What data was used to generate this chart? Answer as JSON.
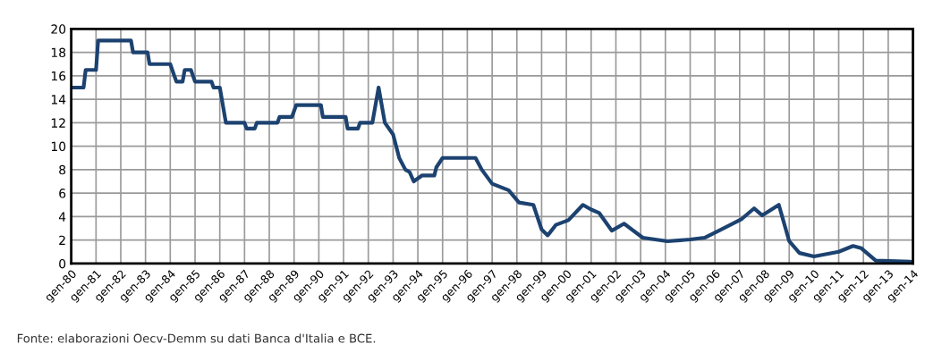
{
  "chart_data": {
    "type": "step",
    "x": [
      "1980-01",
      "1980-07",
      "1980-08",
      "1981-01",
      "1981-02",
      "1982-06",
      "1982-07",
      "1983-02",
      "1983-03",
      "1984-01",
      "1984-03",
      "1984-04",
      "1984-07",
      "1984-08",
      "1984-11",
      "1985-01",
      "1985-09",
      "1985-10",
      "1986-01",
      "1986-04",
      "1987-01",
      "1987-02",
      "1987-06",
      "1987-07",
      "1988-05",
      "1988-06",
      "1988-12",
      "1989-02",
      "1990-02",
      "1990-03",
      "1991-02",
      "1991-03",
      "1991-08",
      "1991-09",
      "1992-03",
      "1992-06",
      "1992-09",
      "1993-01",
      "1993-04",
      "1993-07",
      "1993-09",
      "1993-11",
      "1994-03",
      "1994-09",
      "1994-10",
      "1995-01",
      "1996-05",
      "1996-08",
      "1997-01",
      "1997-09",
      "1998-02",
      "1998-09",
      "1999-01",
      "1999-04",
      "1999-08",
      "2000-02",
      "2000-09",
      "2001-01",
      "2001-05",
      "2001-11",
      "2002-05",
      "2003-02",
      "2004-02",
      "2005-01",
      "2005-08",
      "2006-03",
      "2007-02",
      "2007-08",
      "2007-12",
      "2008-08",
      "2009-01",
      "2009-06",
      "2010-01",
      "2011-01",
      "2011-08",
      "2011-12",
      "2012-07",
      "2014-01"
    ],
    "series": [
      {
        "color": "#1c4270",
        "values": [
          15,
          15,
          16.5,
          16.5,
          19,
          19,
          18,
          18,
          17,
          17,
          16,
          15.5,
          15.5,
          16.5,
          16.5,
          15.5,
          15.5,
          15,
          15,
          12,
          12,
          11.5,
          11.5,
          12,
          12,
          12.5,
          12.5,
          13.5,
          13.5,
          12.5,
          12.5,
          11.5,
          11.5,
          12,
          12,
          15,
          12,
          11,
          9,
          8,
          7.8,
          7,
          7.5,
          7.5,
          8.2,
          9,
          9,
          8,
          6.8,
          6.25,
          5.2,
          5,
          2.9,
          2.4,
          3.3,
          3.7,
          5,
          4.6,
          4.3,
          2.8,
          3.4,
          2.2,
          1.9,
          2.05,
          2.2,
          2.8,
          3.8,
          4.7,
          4.1,
          5,
          1.9,
          0.9,
          0.6,
          1,
          1.5,
          1.3,
          0.25,
          0.15
        ]
      }
    ],
    "xlim": [
      "1980-01",
      "2014-01"
    ],
    "xticks": [
      {
        "value": "1980-01",
        "label": "gen-80"
      },
      {
        "value": "1981-01",
        "label": "gen-81"
      },
      {
        "value": "1982-01",
        "label": "gen-82"
      },
      {
        "value": "1983-01",
        "label": "gen-83"
      },
      {
        "value": "1984-01",
        "label": "gen-84"
      },
      {
        "value": "1985-01",
        "label": "gen-85"
      },
      {
        "value": "1986-01",
        "label": "gen-86"
      },
      {
        "value": "1987-01",
        "label": "gen-87"
      },
      {
        "value": "1988-01",
        "label": "gen-88"
      },
      {
        "value": "1989-01",
        "label": "gen-89"
      },
      {
        "value": "1990-01",
        "label": "gen-90"
      },
      {
        "value": "1991-01",
        "label": "gen-91"
      },
      {
        "value": "1992-01",
        "label": "gen-92"
      },
      {
        "value": "1993-01",
        "label": "gen-93"
      },
      {
        "value": "1994-01",
        "label": "gen-94"
      },
      {
        "value": "1995-01",
        "label": "gen-95"
      },
      {
        "value": "1996-01",
        "label": "gen-96"
      },
      {
        "value": "1997-01",
        "label": "gen-97"
      },
      {
        "value": "1998-01",
        "label": "gen-98"
      },
      {
        "value": "1999-01",
        "label": "gen-99"
      },
      {
        "value": "2000-01",
        "label": "gen-00"
      },
      {
        "value": "2001-01",
        "label": "gen-01"
      },
      {
        "value": "2002-01",
        "label": "gen-02"
      },
      {
        "value": "2003-01",
        "label": "gen-03"
      },
      {
        "value": "2004-01",
        "label": "gen-04"
      },
      {
        "value": "2005-01",
        "label": "gen-05"
      },
      {
        "value": "2006-01",
        "label": "gen-06"
      },
      {
        "value": "2007-01",
        "label": "gen-07"
      },
      {
        "value": "2008-01",
        "label": "gen-08"
      },
      {
        "value": "2009-01",
        "label": "gen-09"
      },
      {
        "value": "2010-01",
        "label": "gen-10"
      },
      {
        "value": "2011-01",
        "label": "gen-11"
      },
      {
        "value": "2012-01",
        "label": "gen-12"
      },
      {
        "value": "2013-01",
        "label": "gen-13"
      },
      {
        "value": "2014-01",
        "label": "gen-14"
      }
    ],
    "ylim": [
      0,
      20
    ],
    "yticks": [
      0,
      2,
      4,
      6,
      8,
      10,
      12,
      14,
      16,
      18,
      20
    ],
    "grid": true,
    "annotations": [
      "Fonte: elaborazioni Oecv-Demm su dati Banca d'Italia e BCE."
    ]
  }
}
